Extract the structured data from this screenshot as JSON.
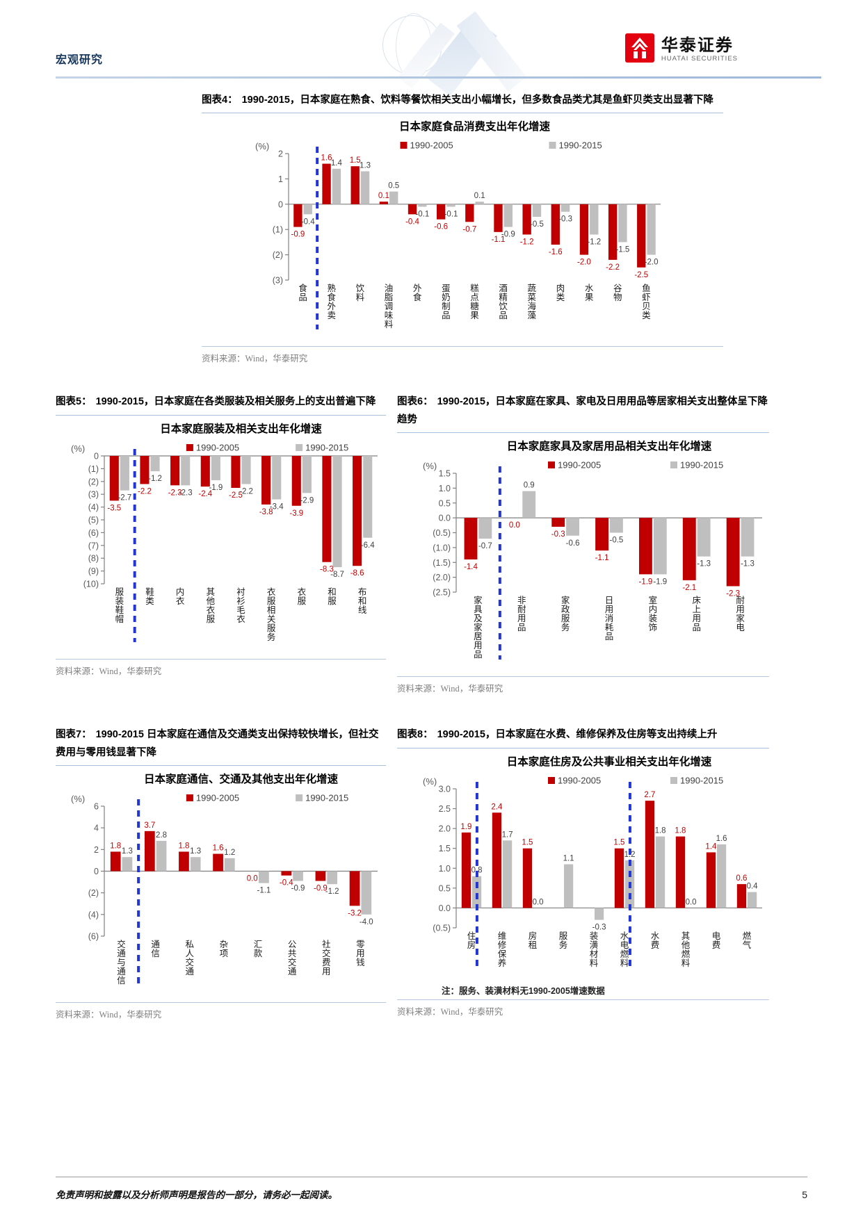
{
  "header": {
    "section_label": "宏观研究",
    "brand_cn": "华泰证券",
    "brand_en": "HUATAI SECURITIES"
  },
  "footer": {
    "disclaimer": "免责声明和披露以及分析师声明是报告的一部分，请务必一起阅读。",
    "page_number": "5"
  },
  "figures": {
    "fig4": {
      "label": "图表4：",
      "caption": "1990-2015，日本家庭在熟食、饮料等餐饮相关支出小幅增长，但多数食品类尤其是鱼虾贝类支出显著下降",
      "source": "资料来源：Wind，华泰研究"
    },
    "fig5": {
      "label": "图表5：",
      "caption": "1990-2015，日本家庭在各类服装及相关服务上的支出普遍下降",
      "source": "资料来源：Wind，华泰研究"
    },
    "fig6": {
      "label": "图表6：",
      "caption": "1990-2015，日本家庭在家具、家电及日用用品等居家相关支出整体呈下降趋势",
      "source": "资料来源：Wind，华泰研究"
    },
    "fig7": {
      "label": "图表7：",
      "caption": "1990-2015 日本家庭在通信及交通类支出保持较快增长，但社交费用与零用钱显著下降",
      "source": "资料来源：Wind，华泰研究"
    },
    "fig8": {
      "label": "图表8：",
      "caption": "1990-2015，日本家庭在水费、维修保养及住房等支出持续上升",
      "note": "注：服务、装潢材料无1990-2005增速数据",
      "source": "资料来源：Wind，华泰研究"
    }
  },
  "chart_data": [
    {
      "type": "bar",
      "title": "日本家庭食品消费支出年化增速",
      "unit_label": "(%)",
      "legend_position": "top",
      "grid": false,
      "categories": [
        "食品",
        "熟食外卖",
        "饮料",
        "油脂调味料",
        "外食",
        "蛋奶制品",
        "糕点糖果",
        "酒精饮品",
        "蔬菜海藻",
        "肉类",
        "水果",
        "谷物",
        "鱼虾贝类"
      ],
      "series": [
        {
          "name": "1990-2005",
          "color": "#c00000",
          "values": [
            -0.9,
            1.6,
            1.5,
            0.1,
            -0.4,
            -0.6,
            -0.7,
            -1.1,
            -1.2,
            -1.6,
            -2.0,
            -2.2,
            -2.5
          ]
        },
        {
          "name": "1990-2015",
          "color": "#bfbfbf",
          "values": [
            -0.4,
            1.4,
            1.3,
            0.5,
            -0.1,
            -0.1,
            0.1,
            -0.9,
            -0.5,
            -0.3,
            -1.2,
            -1.5,
            -2.0
          ]
        }
      ],
      "ylim": [
        -3,
        2
      ],
      "yticks": [
        {
          "v": 2,
          "label": "2"
        },
        {
          "v": 1,
          "label": "1"
        },
        {
          "v": 0,
          "label": "0"
        },
        {
          "v": -1,
          "label": "(1)"
        },
        {
          "v": -2,
          "label": "(2)"
        },
        {
          "v": -3,
          "label": "(3)"
        }
      ],
      "dashed_lines": [
        1.0
      ]
    },
    {
      "type": "bar",
      "title": "日本家庭服装及相关支出年化增速",
      "unit_label": "(%)",
      "legend_position": "top",
      "grid": false,
      "categories": [
        "服装鞋帽",
        "鞋类",
        "内衣",
        "其他衣服",
        "衬衫毛衣",
        "衣服相关服务",
        "衣服",
        "和服",
        "布和线"
      ],
      "series": [
        {
          "name": "1990-2005",
          "color": "#c00000",
          "values": [
            -3.5,
            -2.2,
            -2.3,
            -2.4,
            -2.5,
            -3.8,
            -3.9,
            -8.3,
            -8.6
          ]
        },
        {
          "name": "1990-2015",
          "color": "#bfbfbf",
          "values": [
            -2.7,
            -1.2,
            -2.3,
            -1.9,
            -2.2,
            -3.4,
            -2.9,
            -8.7,
            -6.4
          ]
        }
      ],
      "ylim": [
        -10,
        0
      ],
      "yticks": [
        {
          "v": 0,
          "label": "0"
        },
        {
          "v": -1,
          "label": "(1)"
        },
        {
          "v": -2,
          "label": "(2)"
        },
        {
          "v": -3,
          "label": "(3)"
        },
        {
          "v": -4,
          "label": "(4)"
        },
        {
          "v": -5,
          "label": "(5)"
        },
        {
          "v": -6,
          "label": "(6)"
        },
        {
          "v": -7,
          "label": "(7)"
        },
        {
          "v": -8,
          "label": "(8)"
        },
        {
          "v": -9,
          "label": "(9)"
        },
        {
          "v": -10,
          "label": "(10)"
        }
      ],
      "dashed_lines": [
        1.0
      ]
    },
    {
      "type": "bar",
      "title": "日本家庭家具及家居用品相关支出年化增速",
      "unit_label": "(%)",
      "legend_position": "top",
      "grid": false,
      "categories": [
        "家具及家居用品",
        "非耐用品",
        "家政服务",
        "日用消耗品",
        "室内装饰",
        "床上用品",
        "耐用家电"
      ],
      "series": [
        {
          "name": "1990-2005",
          "color": "#c00000",
          "values": [
            -1.4,
            0.0,
            -0.3,
            -1.1,
            -1.9,
            -2.1,
            -2.3
          ]
        },
        {
          "name": "1990-2015",
          "color": "#bfbfbf",
          "values": [
            -0.7,
            0.9,
            -0.6,
            -0.5,
            -1.9,
            -1.3,
            -1.3
          ]
        }
      ],
      "ylim": [
        -2.5,
        1.5
      ],
      "yticks": [
        {
          "v": 1.5,
          "label": "1.5"
        },
        {
          "v": 1.0,
          "label": "1.0"
        },
        {
          "v": 0.5,
          "label": "0.5"
        },
        {
          "v": 0,
          "label": "0.0"
        },
        {
          "v": -0.5,
          "label": "(0.5)"
        },
        {
          "v": -1.0,
          "label": "(1.0)"
        },
        {
          "v": -1.5,
          "label": "(1.5)"
        },
        {
          "v": -2.0,
          "label": "(2.0)"
        },
        {
          "v": -2.5,
          "label": "(2.5)"
        }
      ],
      "dashed_lines": [
        1.0
      ]
    },
    {
      "type": "bar",
      "title": "日本家庭通信、交通及其他支出年化增速",
      "unit_label": "(%)",
      "legend_position": "top",
      "grid": false,
      "categories": [
        "交通与通信",
        "通信",
        "私人交通",
        "杂项",
        "汇款",
        "公共交通",
        "社交费用",
        "零用钱"
      ],
      "series": [
        {
          "name": "1990-2005",
          "color": "#c00000",
          "values": [
            1.8,
            3.7,
            1.8,
            1.6,
            0.0,
            -0.4,
            -0.9,
            -3.2
          ]
        },
        {
          "name": "1990-2015",
          "color": "#bfbfbf",
          "values": [
            1.3,
            2.8,
            1.3,
            1.2,
            -1.1,
            -0.9,
            -1.2,
            -4.0
          ]
        }
      ],
      "ylim": [
        -6,
        6
      ],
      "yticks": [
        {
          "v": 6,
          "label": "6"
        },
        {
          "v": 4,
          "label": "4"
        },
        {
          "v": 2,
          "label": "2"
        },
        {
          "v": 0,
          "label": "0"
        },
        {
          "v": -2,
          "label": "(2)"
        },
        {
          "v": -4,
          "label": "(4)"
        },
        {
          "v": -6,
          "label": "(6)"
        }
      ],
      "dashed_lines": [
        1.0
      ]
    },
    {
      "type": "bar",
      "title": "日本家庭住房及公共事业相关支出年化增速",
      "unit_label": "(%)",
      "legend_position": "top",
      "grid": false,
      "categories": [
        "住房",
        "维修保养",
        "房租",
        "服务",
        "装潢材料",
        "水电燃料",
        "水费",
        "其他燃料",
        "电费",
        "燃气"
      ],
      "series": [
        {
          "name": "1990-2005",
          "color": "#c00000",
          "values": [
            1.9,
            2.4,
            1.5,
            null,
            null,
            1.5,
            2.7,
            1.8,
            1.4,
            0.6
          ]
        },
        {
          "name": "1990-2015",
          "color": "#bfbfbf",
          "values": [
            0.8,
            1.7,
            0.0,
            1.1,
            -0.3,
            1.2,
            1.8,
            0.0,
            1.6,
            0.4
          ]
        }
      ],
      "ylim": [
        -0.5,
        3.0
      ],
      "yticks": [
        {
          "v": 3.0,
          "label": "3.0"
        },
        {
          "v": 2.5,
          "label": "2.5"
        },
        {
          "v": 2.0,
          "label": "2.0"
        },
        {
          "v": 1.5,
          "label": "1.5"
        },
        {
          "v": 1.0,
          "label": "1.0"
        },
        {
          "v": 0.5,
          "label": "0.5"
        },
        {
          "v": 0,
          "label": "0.0"
        },
        {
          "v": -0.5,
          "label": "(0.5)"
        }
      ],
      "dashed_lines": [
        0.68,
        5.68
      ]
    }
  ]
}
